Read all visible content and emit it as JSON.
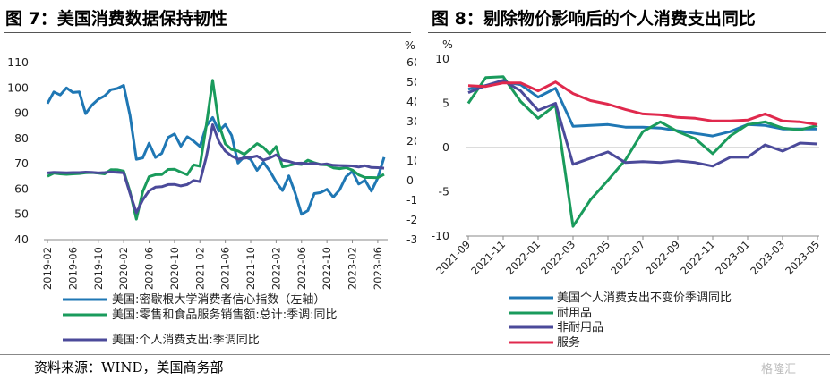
{
  "left_title": "图 7：美国消费数据保持韧性",
  "right_title": "图 8：剔除物价影响后的个人消费支出同比",
  "source_note": "资料来源：WIND，美国商务部",
  "watermark": "格隆汇",
  "chart_data": [
    {
      "type": "line",
      "title": "图 7：美国消费数据保持韧性",
      "y_left": {
        "range": [
          40,
          110
        ],
        "ticks": [
          40,
          50,
          60,
          70,
          80,
          90,
          100,
          110
        ]
      },
      "y_right": {
        "range": [
          -30,
          60
        ],
        "ticks": [
          -30,
          -20,
          -10,
          0,
          10,
          20,
          30,
          40,
          50,
          60
        ],
        "unit_label": "%"
      },
      "x": [
        "2019-02",
        "2019-03",
        "2019-04",
        "2019-05",
        "2019-06",
        "2019-07",
        "2019-08",
        "2019-09",
        "2019-10",
        "2019-11",
        "2019-12",
        "2020-01",
        "2020-02",
        "2020-03",
        "2020-04",
        "2020-05",
        "2020-06",
        "2020-07",
        "2020-08",
        "2020-09",
        "2020-10",
        "2020-11",
        "2020-12",
        "2021-01",
        "2021-02",
        "2021-03",
        "2021-04",
        "2021-05",
        "2021-06",
        "2021-07",
        "2021-08",
        "2021-09",
        "2021-10",
        "2021-11",
        "2021-12",
        "2022-01",
        "2022-02",
        "2022-03",
        "2022-04",
        "2022-05",
        "2022-06",
        "2022-07",
        "2022-08",
        "2022-09",
        "2022-10",
        "2022-11",
        "2022-12",
        "2023-01",
        "2023-02",
        "2023-03",
        "2023-04",
        "2023-05",
        "2023-06",
        "2023-07"
      ],
      "x_tick_labels": [
        "2019-02",
        "2019-06",
        "2019-10",
        "2020-02",
        "2020-06",
        "2020-10",
        "2021-02",
        "2021-06",
        "2021-10",
        "2022-02",
        "2022-06",
        "2022-10",
        "2023-02",
        "2023-06"
      ],
      "series": [
        {
          "name": "美国:密歇根大学消费者信心指数（左轴）",
          "axis": "left",
          "color": "#1f77b4",
          "values": [
            93.8,
            98.4,
            97.2,
            100.0,
            98.2,
            98.4,
            89.8,
            93.2,
            95.5,
            96.8,
            99.3,
            99.8,
            101.0,
            89.1,
            71.8,
            72.3,
            78.1,
            72.5,
            74.1,
            80.4,
            81.8,
            76.9,
            80.7,
            79.0,
            76.8,
            84.9,
            88.3,
            82.9,
            85.5,
            81.2,
            70.3,
            72.8,
            71.7,
            67.4,
            70.6,
            67.2,
            62.8,
            59.4,
            65.2,
            58.4,
            50.0,
            51.5,
            58.2,
            58.6,
            59.9,
            56.8,
            59.7,
            64.9,
            67.0,
            62.0,
            63.5,
            59.2,
            64.4,
            72.6
          ]
        },
        {
          "name": "美国:零售和食品服务销售额:总计:季调:同比",
          "axis": "right",
          "color": "#1a9b5c",
          "values": [
            2.2,
            3.8,
            3.4,
            3.2,
            3.4,
            3.6,
            4.0,
            4.1,
            3.8,
            3.4,
            5.6,
            5.5,
            4.8,
            -5.7,
            -19.6,
            -5.6,
            2.0,
            3.0,
            3.1,
            5.7,
            5.8,
            4.3,
            3.0,
            8.0,
            7.3,
            28.0,
            51.0,
            28.7,
            18.7,
            15.8,
            15.1,
            13.3,
            16.1,
            18.8,
            16.9,
            13.5,
            17.3,
            7.0,
            7.7,
            8.5,
            8.2,
            10.4,
            9.1,
            8.2,
            8.0,
            6.5,
            6.1,
            6.6,
            5.4,
            2.9,
            1.6,
            1.6,
            1.5,
            3.2
          ]
        },
        {
          "name": "美国:个人消费支出:季调同比",
          "axis": "right",
          "color": "#4b4a9a",
          "values": [
            3.9,
            4.2,
            4.1,
            4.0,
            4.1,
            4.1,
            4.3,
            4.2,
            3.9,
            4.1,
            4.4,
            4.2,
            4.0,
            -6.5,
            -16.3,
            -9.8,
            -5.2,
            -3.3,
            -3.1,
            -2.0,
            -1.9,
            -2.7,
            -2.0,
            0.1,
            -0.5,
            12.0,
            28.4,
            19.8,
            15.0,
            12.5,
            10.9,
            11.4,
            11.8,
            12.5,
            10.4,
            11.5,
            13.1,
            10.4,
            9.8,
            8.8,
            8.9,
            8.5,
            8.8,
            8.2,
            8.5,
            7.8,
            7.7,
            7.6,
            7.5,
            6.9,
            7.6,
            6.7,
            6.6,
            6.3
          ]
        }
      ]
    },
    {
      "type": "line",
      "title": "图 8：剔除物价影响后的个人消费支出同比",
      "y": {
        "range": [
          -10,
          10
        ],
        "ticks": [
          -10,
          -5,
          0,
          5,
          10
        ],
        "unit_label": "%"
      },
      "x": [
        "2021-09",
        "2021-10",
        "2021-11",
        "2021-12",
        "2022-01",
        "2022-02",
        "2022-03",
        "2022-04",
        "2022-05",
        "2022-06",
        "2022-07",
        "2022-08",
        "2022-09",
        "2022-10",
        "2022-11",
        "2022-12",
        "2023-01",
        "2023-02",
        "2023-03",
        "2023-04",
        "2023-05"
      ],
      "x_tick_labels": [
        "2021-09",
        "2021-11",
        "2022-01",
        "2022-03",
        "2022-05",
        "2022-07",
        "2022-09",
        "2022-11",
        "2023-01",
        "2023-03",
        "2023-05"
      ],
      "series": [
        {
          "name": "美国个人消费支出不变价季调同比",
          "color": "#1f77b4",
          "values": [
            6.6,
            7.0,
            7.4,
            7.1,
            5.7,
            6.7,
            2.4,
            2.5,
            2.6,
            2.3,
            2.3,
            2.2,
            1.9,
            1.6,
            1.3,
            1.8,
            2.6,
            2.5,
            2.1,
            2.1,
            2.1
          ]
        },
        {
          "name": "耐用品",
          "color": "#1a9b5c",
          "values": [
            5.0,
            7.9,
            8.0,
            5.2,
            3.3,
            4.8,
            -8.9,
            -5.9,
            -3.7,
            -1.4,
            1.8,
            2.9,
            1.8,
            1.0,
            -0.7,
            1.3,
            2.6,
            2.9,
            2.2,
            2.0,
            2.5
          ]
        },
        {
          "name": "非耐用品",
          "color": "#4b4a9a",
          "values": [
            6.2,
            7.0,
            7.6,
            6.4,
            4.2,
            5.0,
            -1.9,
            -1.2,
            -0.5,
            -1.7,
            -1.6,
            -1.7,
            -1.5,
            -1.7,
            -2.1,
            -1.1,
            -1.1,
            0.3,
            -0.4,
            0.5,
            0.4
          ]
        },
        {
          "name": "服务",
          "color": "#e0294d",
          "values": [
            7.0,
            6.9,
            7.3,
            7.3,
            6.4,
            7.4,
            6.1,
            5.3,
            4.9,
            4.3,
            3.8,
            3.7,
            3.4,
            3.3,
            3.0,
            3.0,
            3.1,
            3.8,
            3.0,
            2.9,
            2.6
          ]
        }
      ]
    }
  ]
}
